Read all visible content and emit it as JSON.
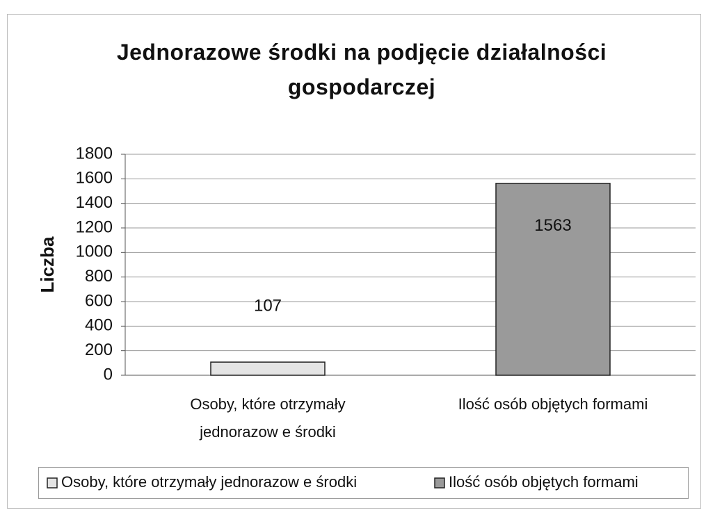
{
  "chart_data": {
    "type": "bar",
    "title": "Jednorazowe środki na podjęcie działalności gospodarczej",
    "ylabel": "Liczba",
    "categories": [
      "Osoby, które otrzymały jednorazow e środki",
      "Ilość osób objętych formami"
    ],
    "series": [
      {
        "name": "Osoby, które otrzymały jednorazow e środki",
        "color": "#e4e4e4",
        "values": [
          107,
          null
        ]
      },
      {
        "name": "Ilość osób objętych formami",
        "color": "#9a9a9a",
        "values": [
          null,
          1563
        ]
      }
    ],
    "ylim": [
      0,
      1800
    ],
    "yticks": [
      0,
      200,
      400,
      600,
      800,
      1000,
      1200,
      1400,
      1600,
      1800
    ],
    "grid": true,
    "legend": "bottom"
  }
}
